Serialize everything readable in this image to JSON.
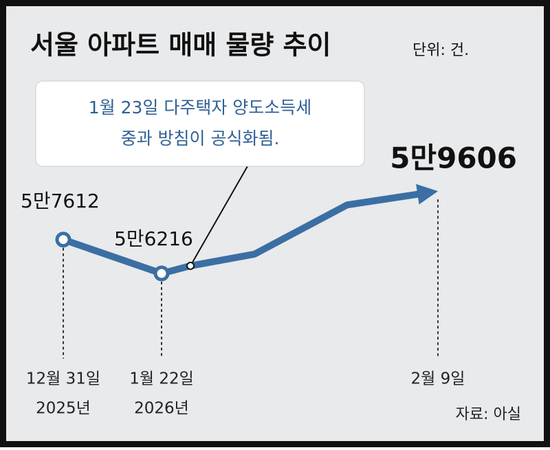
{
  "chart_data": {
    "type": "line",
    "title": "서울 아파트 매매 물량 추이",
    "unit": "단위: 건.",
    "source": "자료: 아실",
    "annotation": [
      "1월 23일 다주택자 양도소득세",
      "중과 방침이 공식화됨."
    ],
    "categories": [
      "12월 31일",
      "1월 22일",
      null,
      null,
      null,
      "2월 9일"
    ],
    "category_years": [
      "2025년",
      "2026년",
      null,
      null,
      null,
      null
    ],
    "series": [
      {
        "name": null,
        "color": "#3b6fa3",
        "values": [
          57612,
          56216,
          56530,
          57010,
          59040,
          59606
        ],
        "value_labels": [
          "5만7612",
          "5만6216",
          null,
          null,
          null,
          "5만9606"
        ]
      }
    ],
    "ylim": [
      55000,
      61000
    ]
  }
}
